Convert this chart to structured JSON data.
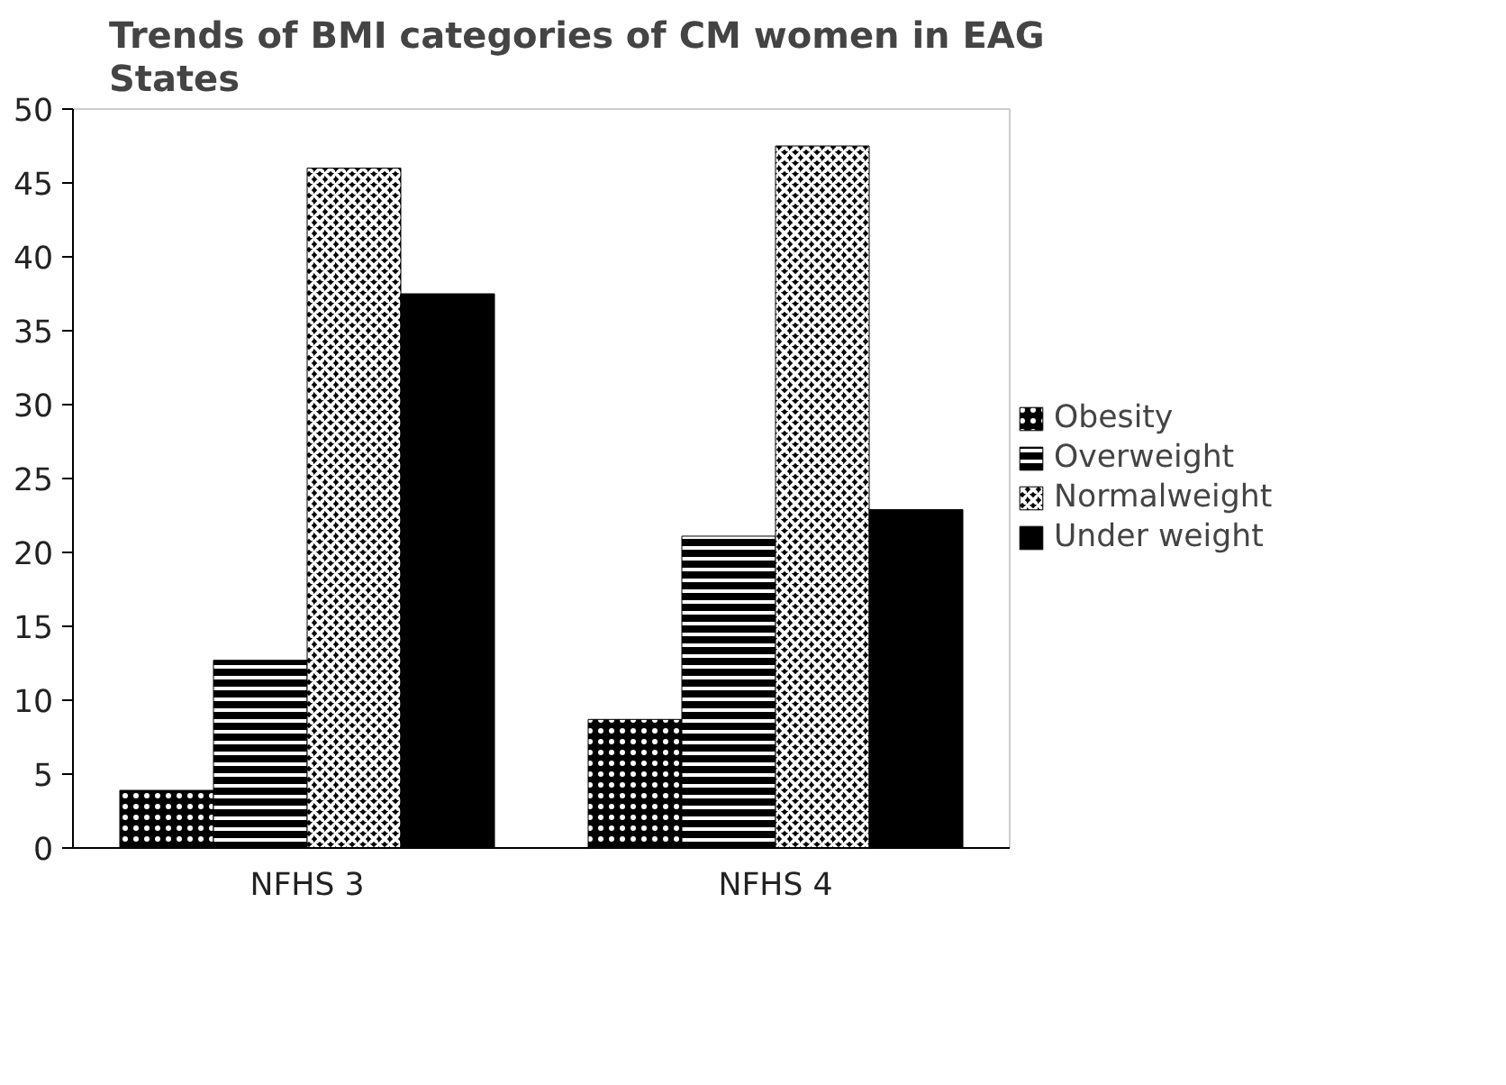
{
  "chart_data": {
    "type": "bar",
    "title": "Trends of BMI categories of CM women in EAG States",
    "categories": [
      "NFHS 3",
      "NFHS 4"
    ],
    "series": [
      {
        "name": "Obesity",
        "color": "#000000",
        "values": [
          3.9,
          8.7
        ]
      },
      {
        "name": "Overweight",
        "color": "#000000",
        "values": [
          12.7,
          21.1
        ]
      },
      {
        "name": "Normalweight",
        "color": "#000000",
        "values": [
          46.0,
          47.5
        ]
      },
      {
        "name": "Under weight",
        "color": "#000000",
        "values": [
          37.5,
          22.9
        ]
      }
    ],
    "ylim": [
      0,
      50
    ],
    "yticks": [
      0,
      5,
      10,
      15,
      20,
      25,
      30,
      35,
      40,
      45,
      50
    ],
    "grid": false,
    "legend": "right"
  }
}
